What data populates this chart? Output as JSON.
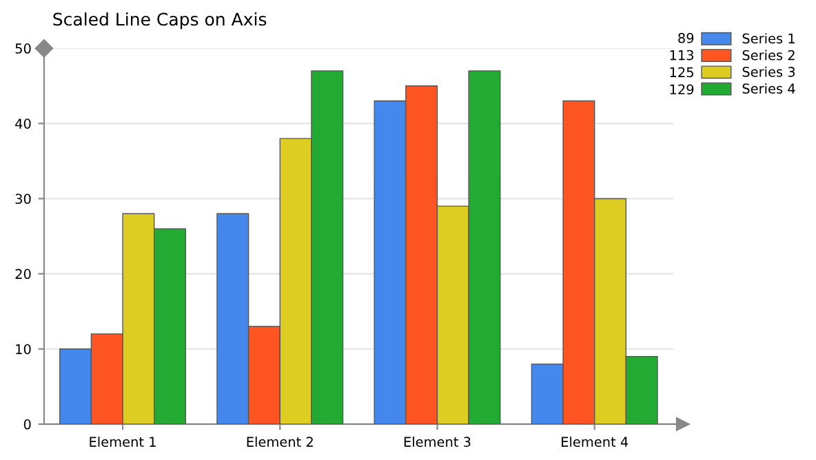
{
  "chart_data": {
    "type": "bar",
    "title": "Scaled Line Caps on Axis",
    "categories": [
      "Element 1",
      "Element 2",
      "Element 3",
      "Element 4"
    ],
    "series": [
      {
        "name": "Series 1",
        "color": "#4488ee",
        "values": [
          10,
          28,
          43,
          8
        ]
      },
      {
        "name": "Series 2",
        "color": "#ff5522",
        "values": [
          12,
          13,
          45,
          43
        ]
      },
      {
        "name": "Series 3",
        "color": "#ddcc22",
        "values": [
          28,
          38,
          29,
          30
        ]
      },
      {
        "name": "Series 4",
        "color": "#22aa33",
        "values": [
          26,
          47,
          47,
          9
        ]
      }
    ],
    "annotations": [
      "89",
      "113",
      "125",
      "129"
    ],
    "ylim": [
      0,
      50
    ],
    "yticks": [
      0,
      10,
      20,
      30,
      40,
      50
    ],
    "grid": "y",
    "legend": "top right"
  }
}
